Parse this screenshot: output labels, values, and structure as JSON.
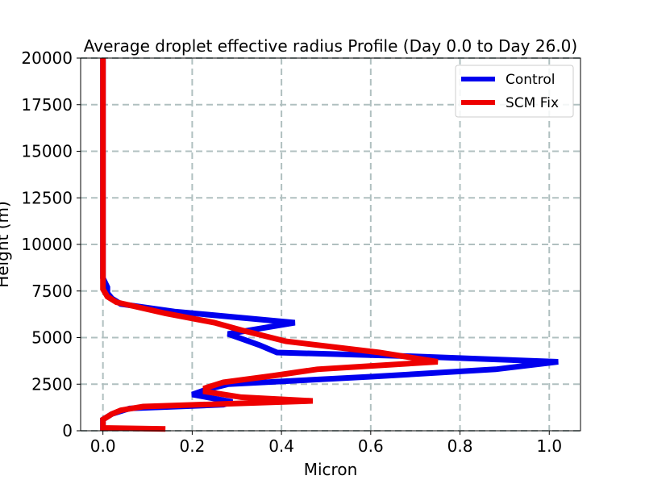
{
  "chart_data": {
    "type": "line",
    "title": "Average droplet effective radius Profile (Day 0.0 to Day 26.0)",
    "xlabel": "Micron",
    "ylabel": "Height (m)",
    "xlim": [
      -0.05,
      1.07
    ],
    "ylim": [
      0,
      20000
    ],
    "xticks": [
      0.0,
      0.2,
      0.4,
      0.6,
      0.8,
      1.0
    ],
    "xtick_labels": [
      "0.0",
      "0.2",
      "0.4",
      "0.6",
      "0.8",
      "1.0"
    ],
    "yticks": [
      0,
      2500,
      5000,
      7500,
      10000,
      12500,
      15000,
      17500,
      20000
    ],
    "ytick_labels": [
      "0",
      "2500",
      "5000",
      "7500",
      "10000",
      "12500",
      "15000",
      "17500",
      "20000"
    ],
    "grid": true,
    "legend_position": "top-right",
    "series": [
      {
        "name": "Control",
        "color": "#0000ee",
        "points": [
          [
            0.0,
            0
          ],
          [
            0.0,
            100
          ],
          [
            0.0,
            300
          ],
          [
            0.0,
            600
          ],
          [
            0.02,
            900
          ],
          [
            0.06,
            1200
          ],
          [
            0.27,
            1400
          ],
          [
            0.29,
            1550
          ],
          [
            0.2,
            1950
          ],
          [
            0.23,
            2200
          ],
          [
            0.28,
            2500
          ],
          [
            0.6,
            2900
          ],
          [
            0.88,
            3300
          ],
          [
            1.02,
            3700
          ],
          [
            0.69,
            4000
          ],
          [
            0.39,
            4200
          ],
          [
            0.35,
            4600
          ],
          [
            0.28,
            5200
          ],
          [
            0.43,
            5800
          ],
          [
            0.16,
            6400
          ],
          [
            0.04,
            6800
          ],
          [
            0.02,
            7100
          ],
          [
            0.01,
            7400
          ],
          [
            0.01,
            7700
          ],
          [
            0.0,
            8200
          ],
          [
            0.0,
            9000
          ],
          [
            0.0,
            10000
          ],
          [
            0.0,
            12500
          ],
          [
            0.0,
            15000
          ],
          [
            0.0,
            17500
          ],
          [
            0.0,
            20000
          ]
        ]
      },
      {
        "name": "SCM Fix",
        "color": "#ee0000",
        "points": [
          [
            0.14,
            100
          ],
          [
            0.0,
            150
          ],
          [
            0.0,
            300
          ],
          [
            0.0,
            600
          ],
          [
            0.02,
            900
          ],
          [
            0.04,
            1100
          ],
          [
            0.09,
            1300
          ],
          [
            0.47,
            1600
          ],
          [
            0.31,
            1800
          ],
          [
            0.23,
            2100
          ],
          [
            0.23,
            2300
          ],
          [
            0.27,
            2600
          ],
          [
            0.38,
            2950
          ],
          [
            0.48,
            3300
          ],
          [
            0.75,
            3700
          ],
          [
            0.62,
            4200
          ],
          [
            0.41,
            4800
          ],
          [
            0.31,
            5400
          ],
          [
            0.25,
            5800
          ],
          [
            0.14,
            6300
          ],
          [
            0.03,
            6900
          ],
          [
            0.01,
            7200
          ],
          [
            0.0,
            7600
          ],
          [
            0.0,
            8000
          ],
          [
            0.0,
            9000
          ],
          [
            0.0,
            10000
          ],
          [
            0.0,
            12500
          ],
          [
            0.0,
            15000
          ],
          [
            0.0,
            17500
          ],
          [
            0.0,
            20000
          ]
        ]
      }
    ]
  }
}
